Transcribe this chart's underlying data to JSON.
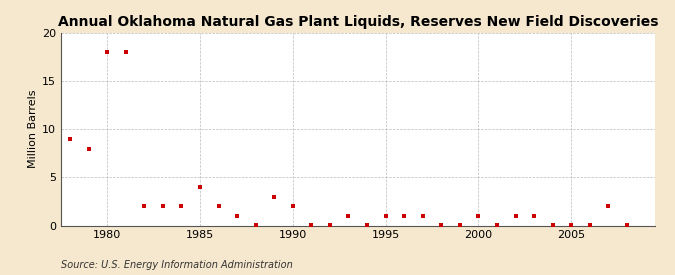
{
  "title": "Annual Oklahoma Natural Gas Plant Liquids, Reserves New Field Discoveries",
  "ylabel": "Million Barrels",
  "source": "Source: U.S. Energy Information Administration",
  "background_color": "#f5e8ce",
  "plot_background": "#ffffff",
  "marker_color": "#cc0000",
  "years": [
    1978,
    1979,
    1980,
    1981,
    1982,
    1983,
    1984,
    1985,
    1986,
    1987,
    1988,
    1989,
    1990,
    1991,
    1992,
    1993,
    1994,
    1995,
    1996,
    1997,
    1998,
    1999,
    2000,
    2001,
    2002,
    2003,
    2004,
    2005,
    2006,
    2007,
    2008
  ],
  "values": [
    9.0,
    8.0,
    18.0,
    18.0,
    2.0,
    2.0,
    2.0,
    4.0,
    2.0,
    1.0,
    0.1,
    3.0,
    2.0,
    0.1,
    0.1,
    1.0,
    0.1,
    1.0,
    1.0,
    1.0,
    0.1,
    0.1,
    1.0,
    0.1,
    1.0,
    1.0,
    0.1,
    0.1,
    0.1,
    2.0,
    0.1
  ],
  "xlim": [
    1977.5,
    2009.5
  ],
  "ylim": [
    0,
    20
  ],
  "xticks": [
    1980,
    1985,
    1990,
    1995,
    2000,
    2005
  ],
  "yticks": [
    0,
    5,
    10,
    15,
    20
  ],
  "title_fontsize": 10,
  "label_fontsize": 8,
  "tick_fontsize": 8,
  "source_fontsize": 7
}
